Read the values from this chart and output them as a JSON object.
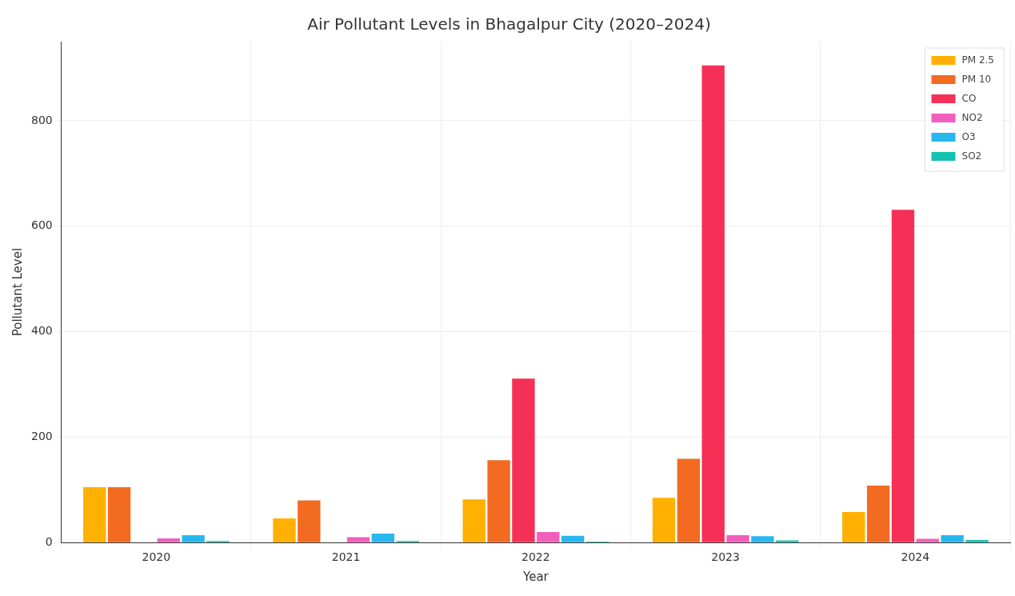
{
  "chart_data": {
    "type": "bar",
    "title": "Air Pollutant Levels in Bhagalpur City (2020–2024)",
    "xlabel": "Year",
    "ylabel": "Pollutant Level",
    "categories": [
      "2020",
      "2021",
      "2022",
      "2023",
      "2024"
    ],
    "series": [
      {
        "name": "PM 2.5",
        "color": "#ffb000",
        "values": [
          105,
          46,
          82,
          85,
          58
        ]
      },
      {
        "name": "PM 10",
        "color": "#f26b21",
        "values": [
          105,
          80,
          156,
          159,
          108
        ]
      },
      {
        "name": "CO",
        "color": "#f53057",
        "values": [
          null,
          null,
          311,
          905,
          631
        ]
      },
      {
        "name": "NO2",
        "color": "#f25ebd",
        "values": [
          8,
          10,
          20,
          14,
          7
        ]
      },
      {
        "name": "O3",
        "color": "#27b8ef",
        "values": [
          14,
          17,
          13,
          12,
          14
        ]
      },
      {
        "name": "SO2",
        "color": "#13c2b0",
        "values": [
          3,
          3,
          2,
          4,
          5
        ]
      }
    ],
    "ylim": [
      0,
      950
    ],
    "yticks": [
      0,
      200,
      400,
      600,
      800
    ],
    "grid": true,
    "legend": "top right"
  }
}
